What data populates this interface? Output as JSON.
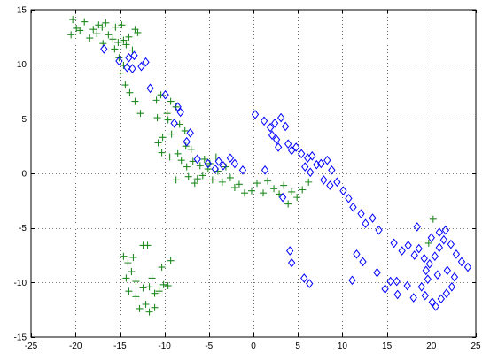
{
  "chart_data": {
    "type": "scatter",
    "title": "",
    "xlabel": "",
    "ylabel": "",
    "xlim": [
      -25,
      25
    ],
    "ylim": [
      -15,
      15
    ],
    "xticks": [
      -25,
      -20,
      -15,
      -10,
      -5,
      0,
      5,
      10,
      15,
      20,
      25
    ],
    "yticks": [
      -15,
      -10,
      -5,
      0,
      5,
      10,
      15
    ],
    "grid": true,
    "grid_style": "dotted",
    "series": [
      {
        "marker": "plus",
        "color": "#228b22",
        "points": [
          [
            -20.5,
            12.7
          ],
          [
            -20.3,
            14.1
          ],
          [
            -19.9,
            13.3
          ],
          [
            -19.5,
            13.1
          ],
          [
            -19.0,
            13.9
          ],
          [
            -18.4,
            12.4
          ],
          [
            -18.0,
            13.2
          ],
          [
            -17.6,
            12.8
          ],
          [
            -17.4,
            13.6
          ],
          [
            -17.0,
            13.4
          ],
          [
            -16.9,
            11.9
          ],
          [
            -16.6,
            13.8
          ],
          [
            -16.3,
            12.7
          ],
          [
            -15.8,
            12.3
          ],
          [
            -15.5,
            13.4
          ],
          [
            -15.2,
            12.0
          ],
          [
            -14.8,
            13.6
          ],
          [
            -14.6,
            12.2
          ],
          [
            -14.3,
            11.8
          ],
          [
            -14.0,
            12.5
          ],
          [
            -13.6,
            11.3
          ],
          [
            -13.3,
            13.2
          ],
          [
            -13.0,
            12.9
          ],
          [
            -15.6,
            11.4
          ],
          [
            -15.1,
            10.6
          ],
          [
            -14.6,
            9.9
          ],
          [
            -14.9,
            9.2
          ],
          [
            -14.4,
            8.1
          ],
          [
            -13.9,
            7.4
          ],
          [
            -13.3,
            6.6
          ],
          [
            -12.7,
            5.5
          ],
          [
            -10.9,
            6.7
          ],
          [
            -10.4,
            7.2
          ],
          [
            -10.8,
            5.1
          ],
          [
            -9.7,
            5.5
          ],
          [
            -9.3,
            6.6
          ],
          [
            -8.7,
            6.1
          ],
          [
            -9.6,
            4.9
          ],
          [
            -8.3,
            4.5
          ],
          [
            -7.7,
            3.9
          ],
          [
            -9.2,
            3.6
          ],
          [
            -10.2,
            3.3
          ],
          [
            -10.7,
            2.8
          ],
          [
            -10.3,
            1.9
          ],
          [
            -9.4,
            1.5
          ],
          [
            -8.5,
            1.8
          ],
          [
            -7.6,
            2.5
          ],
          [
            -7.0,
            2.2
          ],
          [
            -8.1,
            1.2
          ],
          [
            -7.5,
            0.6
          ],
          [
            -6.8,
            1.1
          ],
          [
            -6.0,
            0.7
          ],
          [
            -5.5,
            1.3
          ],
          [
            -4.9,
            0.9
          ],
          [
            -4.2,
            1.5
          ],
          [
            -7.3,
            -0.3
          ],
          [
            -6.3,
            -0.5
          ],
          [
            -5.7,
            -0.2
          ],
          [
            -5.1,
            0.4
          ],
          [
            -4.6,
            -0.6
          ],
          [
            -4.0,
            0.2
          ],
          [
            -3.5,
            -0.8
          ],
          [
            -3.1,
            0.6
          ],
          [
            -2.6,
            -0.4
          ],
          [
            -2.1,
            -1.3
          ],
          [
            -1.6,
            -1.0
          ],
          [
            -1.0,
            -1.8
          ],
          [
            -0.2,
            -1.6
          ],
          [
            0.4,
            -0.9
          ],
          [
            1.1,
            -1.8
          ],
          [
            1.6,
            -0.7
          ],
          [
            2.3,
            -1.4
          ],
          [
            2.9,
            -1.9
          ],
          [
            3.4,
            -1.1
          ],
          [
            3.9,
            -2.8
          ],
          [
            4.3,
            -1.7
          ],
          [
            4.9,
            -2.2
          ],
          [
            5.5,
            -1.5
          ],
          [
            6.2,
            -0.8
          ],
          [
            -6.6,
            -0.9
          ],
          [
            -8.7,
            -0.6
          ],
          [
            -13.5,
            -7.7
          ],
          [
            -14.1,
            -8.2
          ],
          [
            -14.6,
            -7.6
          ],
          [
            -13.7,
            -9.0
          ],
          [
            -14.3,
            -9.6
          ],
          [
            -13.2,
            -9.9
          ],
          [
            -14.0,
            -10.8
          ],
          [
            -13.2,
            -11.3
          ],
          [
            -12.4,
            -10.5
          ],
          [
            -12.8,
            -12.4
          ],
          [
            -12.1,
            -12.0
          ],
          [
            -11.7,
            -12.7
          ],
          [
            -11.1,
            -12.3
          ],
          [
            -11.7,
            -10.4
          ],
          [
            -11.1,
            -11.0
          ],
          [
            -10.6,
            -10.8
          ],
          [
            -10.3,
            -8.6
          ],
          [
            -9.6,
            -10.3
          ],
          [
            -12.4,
            -6.6
          ],
          [
            -11.9,
            -6.6
          ],
          [
            -11.4,
            -9.6
          ],
          [
            -10.1,
            -10.2
          ],
          [
            -9.3,
            -8.0
          ],
          [
            20.2,
            -4.2
          ],
          [
            19.7,
            -6.4
          ]
        ]
      },
      {
        "marker": "diamond",
        "color": "#0000ff",
        "points": [
          [
            -16.8,
            11.4
          ],
          [
            -15.1,
            10.3
          ],
          [
            -14.2,
            9.7
          ],
          [
            -14.0,
            10.6
          ],
          [
            -13.4,
            10.8
          ],
          [
            -12.1,
            10.2
          ],
          [
            -13.6,
            9.6
          ],
          [
            -12.6,
            9.8
          ],
          [
            -11.6,
            7.8
          ],
          [
            -9.9,
            7.2
          ],
          [
            -8.5,
            6.1
          ],
          [
            -8.2,
            5.6
          ],
          [
            -8.9,
            4.6
          ],
          [
            -7.1,
            3.7
          ],
          [
            -7.5,
            2.9
          ],
          [
            -6.3,
            1.3
          ],
          [
            -5.1,
            0.9
          ],
          [
            -4.3,
            0.4
          ],
          [
            -3.9,
            1.1
          ],
          [
            -3.4,
            0.7
          ],
          [
            -2.6,
            1.4
          ],
          [
            -2.1,
            0.9
          ],
          [
            -1.2,
            0.3
          ],
          [
            0.2,
            5.4
          ],
          [
            1.2,
            4.8
          ],
          [
            1.9,
            4.2
          ],
          [
            2.4,
            4.6
          ],
          [
            2.1,
            3.5
          ],
          [
            3.1,
            5.1
          ],
          [
            3.6,
            4.3
          ],
          [
            2.6,
            3.1
          ],
          [
            3.9,
            2.7
          ],
          [
            4.3,
            2.1
          ],
          [
            4.8,
            2.4
          ],
          [
            5.4,
            1.8
          ],
          [
            6.1,
            1.4
          ],
          [
            5.8,
            0.6
          ],
          [
            6.4,
            0.1
          ],
          [
            6.6,
            1.6
          ],
          [
            7.1,
            0.8
          ],
          [
            7.6,
            0.9
          ],
          [
            8.3,
            1.2
          ],
          [
            8.8,
            0.3
          ],
          [
            7.9,
            -0.6
          ],
          [
            8.6,
            -1.1
          ],
          [
            9.4,
            -0.8
          ],
          [
            10.1,
            -1.6
          ],
          [
            10.7,
            -2.3
          ],
          [
            11.2,
            -3.1
          ],
          [
            12.1,
            -3.7
          ],
          [
            12.6,
            -4.6
          ],
          [
            13.4,
            -4.1
          ],
          [
            14.1,
            -5.2
          ],
          [
            15.8,
            -6.4
          ],
          [
            16.7,
            -7.1
          ],
          [
            17.4,
            -6.6
          ],
          [
            18.1,
            -7.5
          ],
          [
            18.6,
            -6.9
          ],
          [
            19.2,
            -7.8
          ],
          [
            19.8,
            -8.3
          ],
          [
            20.4,
            -7.6
          ],
          [
            20.9,
            -6.8
          ],
          [
            21.4,
            -6.1
          ],
          [
            22.2,
            -6.5
          ],
          [
            22.8,
            -7.4
          ],
          [
            23.4,
            -8.1
          ],
          [
            24.1,
            -8.6
          ],
          [
            21.8,
            -8.9
          ],
          [
            20.7,
            -9.3
          ],
          [
            19.6,
            -9.7
          ],
          [
            18.9,
            -10.4
          ],
          [
            19.3,
            -11.2
          ],
          [
            20.1,
            -11.8
          ],
          [
            21.1,
            -11.5
          ],
          [
            21.7,
            -11.0
          ],
          [
            22.3,
            -10.4
          ],
          [
            17.3,
            -10.3
          ],
          [
            16.2,
            -11.1
          ],
          [
            14.8,
            -10.6
          ],
          [
            15.4,
            -9.9
          ],
          [
            13.9,
            -9.1
          ],
          [
            12.3,
            -8.1
          ],
          [
            11.6,
            -7.4
          ],
          [
            11.1,
            -9.8
          ],
          [
            4.1,
            -7.1
          ],
          [
            4.3,
            -8.2
          ],
          [
            5.7,
            -9.6
          ],
          [
            6.3,
            -10.1
          ],
          [
            16.1,
            -9.9
          ],
          [
            18.0,
            -11.4
          ],
          [
            20.5,
            -12.2
          ],
          [
            20.0,
            -5.9
          ],
          [
            20.9,
            -5.4
          ],
          [
            21.6,
            -5.2
          ],
          [
            19.4,
            -8.9
          ],
          [
            22.6,
            -9.5
          ],
          [
            18.4,
            -4.9
          ],
          [
            2.8,
            2.4
          ],
          [
            1.3,
            0.3
          ],
          [
            3.3,
            -2.2
          ]
        ]
      }
    ]
  }
}
